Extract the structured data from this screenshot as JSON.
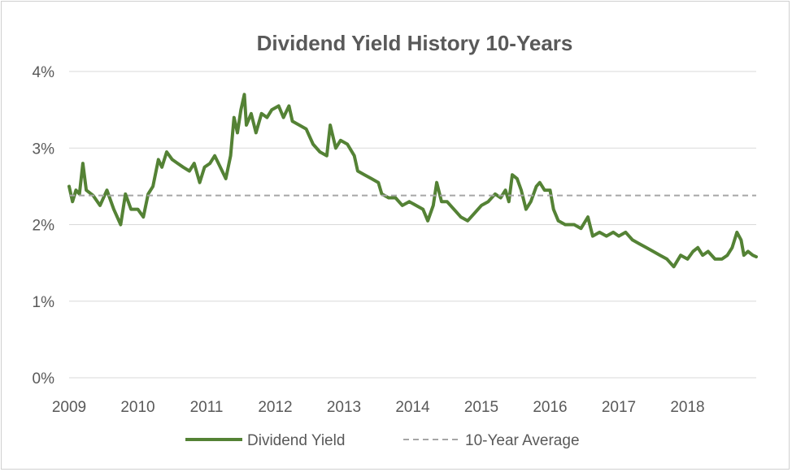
{
  "chart_data": {
    "type": "line",
    "title": "Dividend Yield History 10-Years",
    "xlabel": "",
    "ylabel": "",
    "x_ticks": [
      "2009",
      "2010",
      "2011",
      "2012",
      "2013",
      "2014",
      "2015",
      "2016",
      "2017",
      "2018"
    ],
    "y_ticks": [
      "0%",
      "1%",
      "2%",
      "3%",
      "4%"
    ],
    "xlim": [
      2009,
      2019
    ],
    "ylim": [
      0,
      4
    ],
    "grid": "horizontal",
    "legend_position": "bottom",
    "series": [
      {
        "name": "Dividend Yield",
        "color": "#548235",
        "style": "solid",
        "points": [
          [
            2009.0,
            2.5
          ],
          [
            2009.05,
            2.3
          ],
          [
            2009.1,
            2.45
          ],
          [
            2009.15,
            2.4
          ],
          [
            2009.2,
            2.8
          ],
          [
            2009.25,
            2.45
          ],
          [
            2009.35,
            2.38
          ],
          [
            2009.45,
            2.25
          ],
          [
            2009.55,
            2.45
          ],
          [
            2009.65,
            2.2
          ],
          [
            2009.75,
            2.0
          ],
          [
            2009.82,
            2.4
          ],
          [
            2009.9,
            2.2
          ],
          [
            2010.0,
            2.2
          ],
          [
            2010.08,
            2.1
          ],
          [
            2010.15,
            2.4
          ],
          [
            2010.22,
            2.5
          ],
          [
            2010.3,
            2.85
          ],
          [
            2010.35,
            2.75
          ],
          [
            2010.42,
            2.95
          ],
          [
            2010.5,
            2.85
          ],
          [
            2010.58,
            2.8
          ],
          [
            2010.66,
            2.75
          ],
          [
            2010.75,
            2.7
          ],
          [
            2010.82,
            2.8
          ],
          [
            2010.9,
            2.55
          ],
          [
            2010.97,
            2.75
          ],
          [
            2011.05,
            2.8
          ],
          [
            2011.12,
            2.9
          ],
          [
            2011.2,
            2.75
          ],
          [
            2011.28,
            2.6
          ],
          [
            2011.35,
            2.9
          ],
          [
            2011.4,
            3.4
          ],
          [
            2011.45,
            3.2
          ],
          [
            2011.5,
            3.5
          ],
          [
            2011.55,
            3.7
          ],
          [
            2011.58,
            3.3
          ],
          [
            2011.65,
            3.45
          ],
          [
            2011.72,
            3.2
          ],
          [
            2011.8,
            3.45
          ],
          [
            2011.88,
            3.4
          ],
          [
            2011.95,
            3.5
          ],
          [
            2012.05,
            3.55
          ],
          [
            2012.12,
            3.4
          ],
          [
            2012.2,
            3.55
          ],
          [
            2012.25,
            3.35
          ],
          [
            2012.35,
            3.3
          ],
          [
            2012.45,
            3.25
          ],
          [
            2012.55,
            3.05
          ],
          [
            2012.65,
            2.95
          ],
          [
            2012.75,
            2.9
          ],
          [
            2012.8,
            3.3
          ],
          [
            2012.88,
            3.0
          ],
          [
            2012.95,
            3.1
          ],
          [
            2013.05,
            3.05
          ],
          [
            2013.15,
            2.9
          ],
          [
            2013.2,
            2.7
          ],
          [
            2013.3,
            2.65
          ],
          [
            2013.4,
            2.6
          ],
          [
            2013.5,
            2.55
          ],
          [
            2013.55,
            2.4
          ],
          [
            2013.65,
            2.35
          ],
          [
            2013.75,
            2.35
          ],
          [
            2013.85,
            2.25
          ],
          [
            2013.95,
            2.3
          ],
          [
            2014.05,
            2.25
          ],
          [
            2014.15,
            2.2
          ],
          [
            2014.22,
            2.05
          ],
          [
            2014.3,
            2.25
          ],
          [
            2014.35,
            2.55
          ],
          [
            2014.42,
            2.3
          ],
          [
            2014.5,
            2.3
          ],
          [
            2014.6,
            2.2
          ],
          [
            2014.7,
            2.1
          ],
          [
            2014.8,
            2.05
          ],
          [
            2014.9,
            2.15
          ],
          [
            2015.0,
            2.25
          ],
          [
            2015.1,
            2.3
          ],
          [
            2015.2,
            2.4
          ],
          [
            2015.28,
            2.35
          ],
          [
            2015.35,
            2.45
          ],
          [
            2015.4,
            2.3
          ],
          [
            2015.45,
            2.65
          ],
          [
            2015.52,
            2.6
          ],
          [
            2015.58,
            2.45
          ],
          [
            2015.65,
            2.2
          ],
          [
            2015.72,
            2.3
          ],
          [
            2015.8,
            2.5
          ],
          [
            2015.85,
            2.55
          ],
          [
            2015.92,
            2.45
          ],
          [
            2016.0,
            2.45
          ],
          [
            2016.05,
            2.2
          ],
          [
            2016.12,
            2.05
          ],
          [
            2016.22,
            2.0
          ],
          [
            2016.35,
            2.0
          ],
          [
            2016.45,
            1.95
          ],
          [
            2016.55,
            2.1
          ],
          [
            2016.62,
            1.85
          ],
          [
            2016.72,
            1.9
          ],
          [
            2016.82,
            1.85
          ],
          [
            2016.92,
            1.9
          ],
          [
            2017.0,
            1.85
          ],
          [
            2017.1,
            1.9
          ],
          [
            2017.2,
            1.8
          ],
          [
            2017.3,
            1.75
          ],
          [
            2017.4,
            1.7
          ],
          [
            2017.5,
            1.65
          ],
          [
            2017.6,
            1.6
          ],
          [
            2017.7,
            1.55
          ],
          [
            2017.8,
            1.45
          ],
          [
            2017.9,
            1.6
          ],
          [
            2018.0,
            1.55
          ],
          [
            2018.08,
            1.65
          ],
          [
            2018.15,
            1.7
          ],
          [
            2018.22,
            1.6
          ],
          [
            2018.3,
            1.65
          ],
          [
            2018.4,
            1.55
          ],
          [
            2018.5,
            1.55
          ],
          [
            2018.58,
            1.6
          ],
          [
            2018.65,
            1.7
          ],
          [
            2018.72,
            1.9
          ],
          [
            2018.78,
            1.8
          ],
          [
            2018.82,
            1.6
          ],
          [
            2018.88,
            1.65
          ],
          [
            2018.95,
            1.6
          ],
          [
            2019.0,
            1.58
          ]
        ]
      },
      {
        "name": "10-Year Average",
        "color": "#a6a6a6",
        "style": "dashed",
        "value": 2.38
      }
    ]
  }
}
